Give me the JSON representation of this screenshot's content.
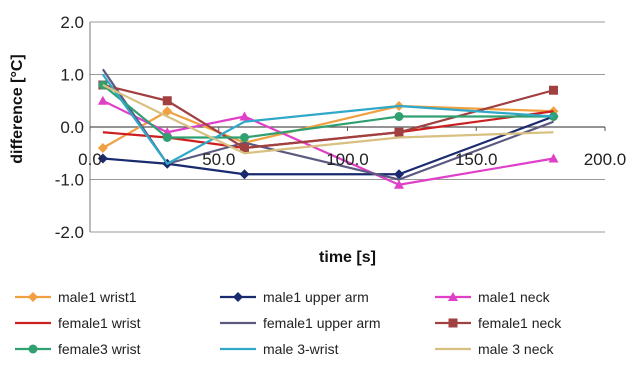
{
  "chart_data": {
    "type": "line",
    "xlabel": "time [s]",
    "ylabel": "difference [°C]",
    "xlim": [
      0,
      200
    ],
    "ylim": [
      -2,
      2
    ],
    "x_ticks": [
      "0.0",
      "50.0",
      "100.0",
      "150.0",
      "200.0"
    ],
    "y_ticks": [
      "2.0",
      "1.0",
      "0.0",
      "-1.0",
      "-2.0"
    ],
    "grid": true,
    "legend_position": "bottom",
    "series": [
      {
        "name": "male1 wrist1",
        "color": "#f0a040",
        "marker": "diamond",
        "points": [
          [
            5,
            -0.4
          ],
          [
            30,
            0.3
          ],
          [
            60,
            -0.3
          ],
          [
            120,
            0.4
          ],
          [
            180,
            0.3
          ]
        ]
      },
      {
        "name": "male1 upper arm",
        "color": "#1a2a6e",
        "marker": "diamond",
        "points": [
          [
            5,
            -0.6
          ],
          [
            30,
            -0.7
          ],
          [
            60,
            -0.9
          ],
          [
            120,
            -0.9
          ],
          [
            180,
            0.2
          ]
        ]
      },
      {
        "name": "male1 neck",
        "color": "#e040c8",
        "marker": "triangle",
        "points": [
          [
            5,
            0.5
          ],
          [
            30,
            -0.1
          ],
          [
            60,
            0.2
          ],
          [
            120,
            -1.1
          ],
          [
            180,
            -0.6
          ]
        ]
      },
      {
        "name": "female1 wrist",
        "color": "#cc2020",
        "marker": "none",
        "points": [
          [
            5,
            -0.1
          ],
          [
            30,
            -0.2
          ],
          [
            60,
            -0.4
          ],
          [
            120,
            -0.1
          ],
          [
            180,
            0.3
          ]
        ]
      },
      {
        "name": "female1 upper arm",
        "color": "#5a5a80",
        "marker": "none",
        "points": [
          [
            5,
            1.1
          ],
          [
            30,
            -0.7
          ],
          [
            60,
            -0.3
          ],
          [
            120,
            -1.0
          ],
          [
            180,
            0.1
          ]
        ]
      },
      {
        "name": "female1 neck",
        "color": "#a04040",
        "marker": "square",
        "points": [
          [
            5,
            0.8
          ],
          [
            30,
            0.5
          ],
          [
            60,
            -0.4
          ],
          [
            120,
            -0.1
          ],
          [
            180,
            0.7
          ]
        ]
      },
      {
        "name": "female3 wrist",
        "color": "#30a070",
        "marker": "circle",
        "points": [
          [
            5,
            0.8
          ],
          [
            30,
            -0.2
          ],
          [
            60,
            -0.2
          ],
          [
            120,
            0.2
          ],
          [
            180,
            0.2
          ]
        ]
      },
      {
        "name": "male 3-wrist",
        "color": "#30a8c8",
        "marker": "none",
        "points": [
          [
            5,
            1.0
          ],
          [
            30,
            -0.7
          ],
          [
            60,
            0.1
          ],
          [
            120,
            0.4
          ],
          [
            180,
            0.2
          ]
        ]
      },
      {
        "name": "male 3 neck",
        "color": "#d8c080",
        "marker": "none",
        "points": [
          [
            5,
            0.8
          ],
          [
            30,
            0.2
          ],
          [
            60,
            -0.5
          ],
          [
            120,
            -0.2
          ],
          [
            180,
            -0.1
          ]
        ]
      }
    ]
  }
}
